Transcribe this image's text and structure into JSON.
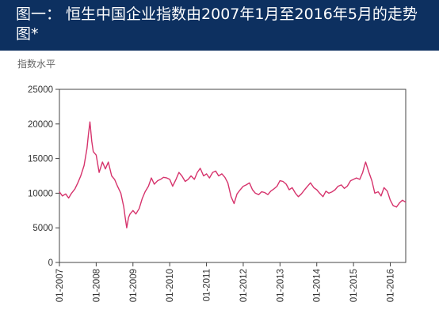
{
  "header": {
    "title": "图一： 恒生中国企业指数由2007年1月至2016年5月的走势图*",
    "background_color": "#0d3060"
  },
  "chart_data": {
    "type": "line",
    "ylabel": "指数水平",
    "xlabel": "",
    "ylim": [
      0,
      25000
    ],
    "y_ticks": [
      0,
      5000,
      10000,
      15000,
      20000,
      25000
    ],
    "y_tick_labels": [
      "0",
      "5000",
      "10000",
      "15000",
      "20000",
      "25000"
    ],
    "x_range": [
      2007.0,
      2016.42
    ],
    "x_ticks": [
      2007,
      2008,
      2009,
      2010,
      2011,
      2012,
      2013,
      2014,
      2015,
      2016
    ],
    "x_tick_labels": [
      "01-2007",
      "01-2008",
      "01-2009",
      "01-2010",
      "01-2011",
      "01-2012",
      "01-2013",
      "01-2014",
      "01-2015",
      "01-2016"
    ],
    "grid": false,
    "line_color": "#d6336c",
    "series": [
      {
        "x": [
          2007.0,
          2007.08,
          2007.17,
          2007.25,
          2007.33,
          2007.42,
          2007.5,
          2007.58,
          2007.67,
          2007.75,
          2007.79,
          2007.83,
          2007.88,
          2007.92,
          2008.0,
          2008.08,
          2008.17,
          2008.25,
          2008.33,
          2008.42,
          2008.5,
          2008.58,
          2008.67,
          2008.75,
          2008.79,
          2008.83,
          2008.88,
          2008.92,
          2009.0,
          2009.08,
          2009.17,
          2009.25,
          2009.33,
          2009.42,
          2009.5,
          2009.58,
          2009.67,
          2009.75,
          2009.83,
          2009.92,
          2010.0,
          2010.08,
          2010.17,
          2010.25,
          2010.33,
          2010.42,
          2010.5,
          2010.58,
          2010.67,
          2010.75,
          2010.83,
          2010.92,
          2011.0,
          2011.08,
          2011.17,
          2011.25,
          2011.33,
          2011.42,
          2011.5,
          2011.58,
          2011.67,
          2011.75,
          2011.83,
          2011.92,
          2012.0,
          2012.08,
          2012.17,
          2012.25,
          2012.33,
          2012.42,
          2012.5,
          2012.58,
          2012.67,
          2012.75,
          2012.83,
          2012.92,
          2013.0,
          2013.08,
          2013.17,
          2013.25,
          2013.33,
          2013.42,
          2013.5,
          2013.58,
          2013.67,
          2013.75,
          2013.83,
          2013.92,
          2014.0,
          2014.08,
          2014.17,
          2014.25,
          2014.33,
          2014.42,
          2014.5,
          2014.58,
          2014.67,
          2014.75,
          2014.83,
          2014.92,
          2015.0,
          2015.08,
          2015.17,
          2015.25,
          2015.3,
          2015.33,
          2015.42,
          2015.5,
          2015.58,
          2015.67,
          2015.75,
          2015.83,
          2015.92,
          2016.0,
          2016.08,
          2016.17,
          2016.25,
          2016.33,
          2016.42
        ],
        "y": [
          10200,
          9600,
          9900,
          9300,
          10000,
          10600,
          11500,
          12500,
          14000,
          16500,
          18500,
          20300,
          17500,
          16000,
          15500,
          13000,
          14500,
          13500,
          14500,
          12500,
          12000,
          11000,
          10000,
          8000,
          6500,
          5000,
          6500,
          7000,
          7500,
          7000,
          7800,
          9200,
          10200,
          11000,
          12200,
          11300,
          11800,
          12000,
          12300,
          12200,
          12000,
          11000,
          12000,
          13000,
          12500,
          11700,
          12000,
          12500,
          12000,
          13000,
          13600,
          12500,
          12800,
          12200,
          13000,
          13200,
          12500,
          12800,
          12300,
          11500,
          9500,
          8500,
          9900,
          10500,
          11000,
          11200,
          11500,
          10500,
          10000,
          9800,
          10200,
          10100,
          9800,
          10300,
          10600,
          11000,
          11800,
          11700,
          11300,
          10500,
          10800,
          10000,
          9500,
          9900,
          10500,
          11000,
          11500,
          10800,
          10500,
          10000,
          9500,
          10300,
          10000,
          10200,
          10500,
          11000,
          11200,
          10700,
          11000,
          11800,
          12000,
          12200,
          12000,
          13000,
          14000,
          14500,
          13000,
          11800,
          10000,
          10200,
          9600,
          10800,
          10300,
          9000,
          8200,
          8000,
          8600,
          9000,
          8700
        ]
      }
    ]
  }
}
